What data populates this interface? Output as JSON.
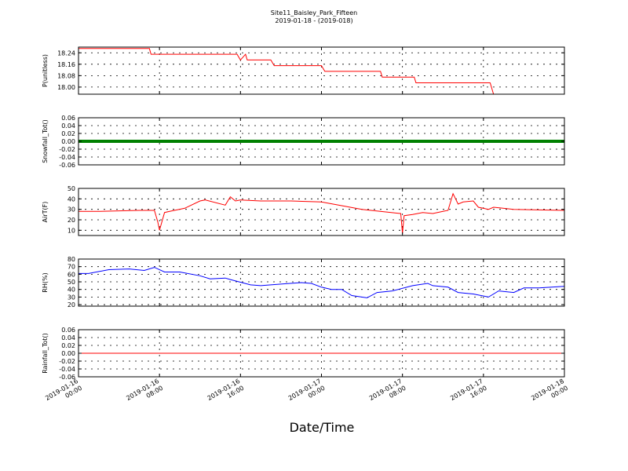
{
  "figure": {
    "title": "Site11_Baisley_Park_Fifteen",
    "subtitle": "2019-01-18 - (2019-018)",
    "xlabel": "Date/Time"
  },
  "chart_data": {
    "type": "line",
    "grid": true,
    "x_range": [
      "2019-01-16 00:00",
      "2019-01-18 00:00"
    ],
    "x_ticks": [
      {
        "value": "2019-01-16 00:00",
        "label_line1": "2019-01-16",
        "label_line2": "00:00"
      },
      {
        "value": "2019-01-16 08:00",
        "label_line1": "2019-01-16",
        "label_line2": "08:00"
      },
      {
        "value": "2019-01-16 16:00",
        "label_line1": "2019-01-16",
        "label_line2": "16:00"
      },
      {
        "value": "2019-01-17 00:00",
        "label_line1": "2019-01-17",
        "label_line2": "00:00"
      },
      {
        "value": "2019-01-17 08:00",
        "label_line1": "2019-01-17",
        "label_line2": "08:00"
      },
      {
        "value": "2019-01-17 16:00",
        "label_line1": "2019-01-17",
        "label_line2": "16:00"
      },
      {
        "value": "2019-01-18 00:00",
        "label_line1": "2019-01-18",
        "label_line2": "00:00"
      }
    ],
    "panels": [
      {
        "ylabel": "P(unitless)",
        "color": "#ff0000",
        "ylim": [
          17.95,
          18.28
        ],
        "yticks": [
          "18.00",
          "18.08",
          "18.16",
          "18.24"
        ],
        "series_x": [
          "2019-01-16 00:00",
          "2019-01-16 07:00",
          "2019-01-16 07:10",
          "2019-01-16 15:40",
          "2019-01-16 16:00",
          "2019-01-16 16:30",
          "2019-01-16 16:40",
          "2019-01-16 19:00",
          "2019-01-16 19:20",
          "2019-01-17 00:00",
          "2019-01-17 00:20",
          "2019-01-17 05:50",
          "2019-01-17 06:00",
          "2019-01-17 09:10",
          "2019-01-17 09:20",
          "2019-01-17 16:40",
          "2019-01-17 17:00",
          "2019-01-18 00:00"
        ],
        "series_y": [
          18.27,
          18.27,
          18.23,
          18.23,
          18.19,
          18.23,
          18.19,
          18.19,
          18.15,
          18.15,
          18.11,
          18.11,
          18.07,
          18.07,
          18.03,
          18.03,
          17.95,
          17.95
        ]
      },
      {
        "ylabel": "Snowfall_Tot()",
        "color": "#008000",
        "ylim": [
          -0.06,
          0.06
        ],
        "yticks": [
          "0.06",
          "0.04",
          "0.02",
          "0.00",
          "-0.02",
          "-0.04",
          "-0.06"
        ],
        "series_x": [
          "2019-01-16 00:00",
          "2019-01-18 00:00"
        ],
        "series_y": [
          0.0,
          0.0
        ]
      },
      {
        "ylabel": "AirT(F)",
        "color": "#ff0000",
        "ylim": [
          5,
          50
        ],
        "yticks": [
          "50",
          "40",
          "30",
          "20",
          "10"
        ],
        "series_x": [
          "2019-01-16 00:00",
          "2019-01-16 02:00",
          "2019-01-16 06:00",
          "2019-01-16 07:30",
          "2019-01-16 07:50",
          "2019-01-16 08:00",
          "2019-01-16 08:30",
          "2019-01-16 09:00",
          "2019-01-16 10:30",
          "2019-01-16 12:00",
          "2019-01-16 12:30",
          "2019-01-16 14:30",
          "2019-01-16 15:00",
          "2019-01-16 15:30",
          "2019-01-16 16:00",
          "2019-01-16 18:00",
          "2019-01-16 21:00",
          "2019-01-17 00:00",
          "2019-01-17 04:00",
          "2019-01-17 07:50",
          "2019-01-17 08:00",
          "2019-01-17 08:10",
          "2019-01-17 09:00",
          "2019-01-17 10:00",
          "2019-01-17 11:00",
          "2019-01-17 12:00",
          "2019-01-17 12:30",
          "2019-01-17 13:00",
          "2019-01-17 13:30",
          "2019-01-17 14:00",
          "2019-01-17 15:00",
          "2019-01-17 15:30",
          "2019-01-17 16:30",
          "2019-01-17 17:00",
          "2019-01-17 19:00",
          "2019-01-18 00:00"
        ],
        "series_y": [
          28,
          28,
          29,
          29,
          18,
          10,
          27,
          28,
          31,
          38,
          39,
          34,
          42,
          38,
          39,
          38,
          38,
          37,
          30,
          26,
          7,
          24,
          25,
          27,
          26,
          28,
          29,
          45,
          35,
          37,
          38,
          32,
          30,
          32,
          30,
          29
        ]
      },
      {
        "ylabel": "RH(%)",
        "color": "#0000ff",
        "ylim": [
          18,
          80
        ],
        "yticks": [
          "80",
          "70",
          "60",
          "50",
          "40",
          "30",
          "20"
        ],
        "series_x": [
          "2019-01-16 00:00",
          "2019-01-16 01:00",
          "2019-01-16 03:00",
          "2019-01-16 05:00",
          "2019-01-16 06:30",
          "2019-01-16 07:30",
          "2019-01-16 08:30",
          "2019-01-16 10:00",
          "2019-01-16 12:00",
          "2019-01-16 13:00",
          "2019-01-16 14:30",
          "2019-01-16 15:00",
          "2019-01-16 17:00",
          "2019-01-16 18:00",
          "2019-01-16 20:00",
          "2019-01-16 22:00",
          "2019-01-16 23:00",
          "2019-01-17 00:00",
          "2019-01-17 01:00",
          "2019-01-17 02:00",
          "2019-01-17 03:00",
          "2019-01-17 04:30",
          "2019-01-17 05:30",
          "2019-01-17 07:00",
          "2019-01-17 09:00",
          "2019-01-17 10:30",
          "2019-01-17 11:00",
          "2019-01-17 12:30",
          "2019-01-17 13:30",
          "2019-01-17 15:00",
          "2019-01-17 16:30",
          "2019-01-17 17:30",
          "2019-01-17 19:00",
          "2019-01-17 20:00",
          "2019-01-17 21:30",
          "2019-01-18 00:00"
        ],
        "series_y": [
          61,
          61,
          66,
          67,
          65,
          69,
          63,
          63,
          58,
          54,
          55,
          53,
          46,
          45,
          47,
          49,
          48,
          43,
          40,
          40,
          32,
          29,
          36,
          38,
          45,
          48,
          45,
          43,
          36,
          34,
          30,
          38,
          36,
          42,
          42,
          44
        ]
      },
      {
        "ylabel": "Rainfall_Tot()",
        "color": "#ff0000",
        "ylim": [
          -0.06,
          0.06
        ],
        "yticks": [
          "0.06",
          "0.04",
          "0.02",
          "0.00",
          "-0.02",
          "-0.04",
          "-0.06"
        ],
        "series_x": [
          "2019-01-16 00:00",
          "2019-01-18 00:00"
        ],
        "series_y": [
          0.0,
          0.0
        ]
      }
    ]
  }
}
